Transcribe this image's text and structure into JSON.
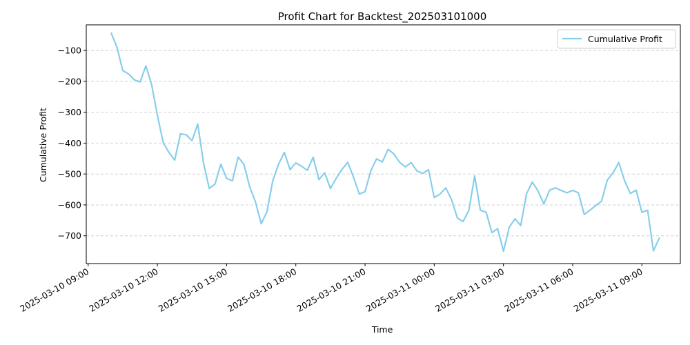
{
  "chart_data": {
    "type": "line",
    "title": "Profit Chart for Backtest_202503101000",
    "xlabel": "Time",
    "ylabel": "Cumulative Profit",
    "series_color": "#87ceeb",
    "grid": "y-dashed",
    "legend_position": "top-right",
    "series": [
      {
        "name": "Cumulative Profit",
        "x": [
          "2025-03-10 10:00",
          "2025-03-10 10:15",
          "2025-03-10 10:30",
          "2025-03-10 10:45",
          "2025-03-10 11:00",
          "2025-03-10 11:15",
          "2025-03-10 11:30",
          "2025-03-10 11:45",
          "2025-03-10 12:00",
          "2025-03-10 12:15",
          "2025-03-10 12:30",
          "2025-03-10 12:45",
          "2025-03-10 13:00",
          "2025-03-10 13:15",
          "2025-03-10 13:30",
          "2025-03-10 13:45",
          "2025-03-10 14:00",
          "2025-03-10 14:15",
          "2025-03-10 14:30",
          "2025-03-10 14:45",
          "2025-03-10 15:00",
          "2025-03-10 15:15",
          "2025-03-10 15:30",
          "2025-03-10 15:45",
          "2025-03-10 16:00",
          "2025-03-10 16:15",
          "2025-03-10 16:30",
          "2025-03-10 16:45",
          "2025-03-10 17:00",
          "2025-03-10 17:15",
          "2025-03-10 17:30",
          "2025-03-10 17:45",
          "2025-03-10 18:00",
          "2025-03-10 18:15",
          "2025-03-10 18:30",
          "2025-03-10 18:45",
          "2025-03-10 19:00",
          "2025-03-10 19:15",
          "2025-03-10 19:30",
          "2025-03-10 19:45",
          "2025-03-10 20:00",
          "2025-03-10 20:15",
          "2025-03-10 20:30",
          "2025-03-10 20:45",
          "2025-03-10 21:00",
          "2025-03-10 21:15",
          "2025-03-10 21:30",
          "2025-03-10 21:45",
          "2025-03-10 22:00",
          "2025-03-10 22:15",
          "2025-03-10 22:30",
          "2025-03-10 22:45",
          "2025-03-10 23:00",
          "2025-03-10 23:15",
          "2025-03-10 23:30",
          "2025-03-10 23:45",
          "2025-03-11 00:00",
          "2025-03-11 00:15",
          "2025-03-11 00:30",
          "2025-03-11 00:45",
          "2025-03-11 01:00",
          "2025-03-11 01:15",
          "2025-03-11 01:30",
          "2025-03-11 01:45",
          "2025-03-11 02:00",
          "2025-03-11 02:15",
          "2025-03-11 02:30",
          "2025-03-11 02:45",
          "2025-03-11 03:00",
          "2025-03-11 03:15",
          "2025-03-11 03:30",
          "2025-03-11 03:45",
          "2025-03-11 04:00",
          "2025-03-11 04:15",
          "2025-03-11 04:30",
          "2025-03-11 04:45",
          "2025-03-11 05:00",
          "2025-03-11 05:15",
          "2025-03-11 05:30",
          "2025-03-11 05:45",
          "2025-03-11 06:00",
          "2025-03-11 06:15",
          "2025-03-11 06:30",
          "2025-03-11 06:45",
          "2025-03-11 07:00",
          "2025-03-11 07:15",
          "2025-03-11 07:30",
          "2025-03-11 07:45",
          "2025-03-11 08:00",
          "2025-03-11 08:15",
          "2025-03-11 08:30",
          "2025-03-11 08:45",
          "2025-03-11 09:00",
          "2025-03-11 09:15",
          "2025-03-11 09:30",
          "2025-03-11 09:45"
        ],
        "y": [
          -44,
          -90,
          -165,
          -176,
          -195,
          -202,
          -150,
          -210,
          -310,
          -398,
          -430,
          -455,
          -370,
          -373,
          -392,
          -338,
          -465,
          -547,
          -532,
          -468,
          -514,
          -522,
          -445,
          -469,
          -541,
          -590,
          -661,
          -622,
          -522,
          -469,
          -430,
          -486,
          -464,
          -475,
          -488,
          -446,
          -518,
          -496,
          -547,
          -514,
          -485,
          -462,
          -510,
          -565,
          -557,
          -490,
          -451,
          -461,
          -420,
          -435,
          -462,
          -477,
          -463,
          -490,
          -498,
          -486,
          -576,
          -565,
          -545,
          -583,
          -642,
          -654,
          -618,
          -506,
          -617,
          -624,
          -690,
          -677,
          -750,
          -672,
          -645,
          -667,
          -564,
          -526,
          -555,
          -597,
          -552,
          -545,
          -553,
          -561,
          -553,
          -561,
          -631,
          -617,
          -602,
          -588,
          -520,
          -496,
          -463,
          -522,
          -563,
          -552,
          -624,
          -617,
          -749,
          -708
        ]
      }
    ],
    "x_ticks": [
      "2025-03-10 09:00",
      "2025-03-10 12:00",
      "2025-03-10 15:00",
      "2025-03-10 18:00",
      "2025-03-10 21:00",
      "2025-03-11 00:00",
      "2025-03-11 03:00",
      "2025-03-11 06:00",
      "2025-03-11 09:00"
    ],
    "y_ticks": [
      -700,
      -600,
      -500,
      -400,
      -300,
      -200,
      -100
    ],
    "xlim": [
      "2025-03-10 08:55",
      "2025-03-11 10:40"
    ],
    "ylim": [
      -790,
      -17
    ]
  }
}
